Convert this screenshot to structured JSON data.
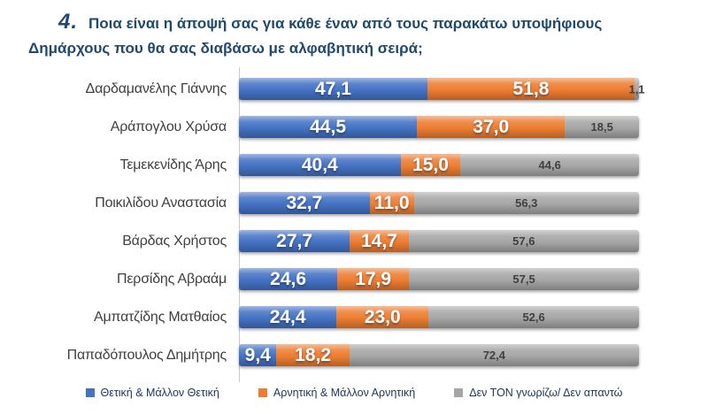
{
  "title": {
    "number": "4.",
    "line1": "Ποια είναι η άποψή σας για κάθε έναν από τους παρακάτω υποψήφιους",
    "line2": "Δημάρχους  που θα σας διαβάσω με αλφαβητική σειρά;",
    "color": "#1E4A6E"
  },
  "chart_data": {
    "type": "bar",
    "orientation": "horizontal",
    "stacked": true,
    "value_format": "one decimal, comma as decimal separator, percentages summing to 100 per row",
    "xlim": [
      0,
      100
    ],
    "grid": false,
    "legend_position": "bottom",
    "categories": [
      "Δαρδαμανέλης Γιάννης",
      "Αράπογλου Χρύσα",
      "Τεμεκενίδης Άρης",
      "Ποικιλίδου Αναστασία",
      "Βάρδας Χρήστος",
      "Περσίδης Αβραάμ",
      "Αμπατζίδης Ματθαίος",
      "Παπαδόπουλος Δημήτρης"
    ],
    "series": [
      {
        "name": "Θετική & Μάλλον Θετική",
        "color": "#4472C4",
        "label_style": "white",
        "values": [
          47.1,
          44.5,
          40.4,
          32.7,
          27.7,
          24.6,
          24.4,
          9.4
        ]
      },
      {
        "name": "Αρνητική & Μάλλον Αρνητική",
        "color": "#ED7D31",
        "label_style": "white",
        "values": [
          51.8,
          37.0,
          15.0,
          11.0,
          14.7,
          17.9,
          23.0,
          18.2
        ]
      },
      {
        "name": "Δεν ΤΟΝ γνωρίζω/ Δεν απαντώ",
        "color": "#A6A6A6",
        "label_style": "dark",
        "values": [
          1.1,
          18.5,
          44.6,
          56.3,
          57.6,
          57.5,
          52.6,
          72.4
        ]
      }
    ]
  },
  "colors": {
    "background": "#FFFFFF",
    "title_text": "#1E4A6E",
    "category_label": "#404040",
    "value_label_dark": "#404040",
    "legend_text": "#1F3864",
    "axis_line": "#C8C8C8"
  }
}
